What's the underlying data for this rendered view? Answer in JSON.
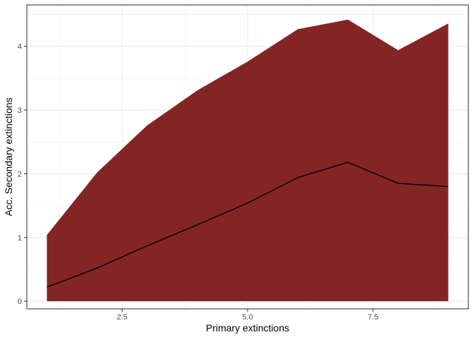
{
  "chart_data": {
    "type": "area",
    "title": "",
    "xlabel": "Primary extinctions",
    "ylabel": "Acc. Secondary extinctions",
    "xlim": [
      0.6,
      9.4
    ],
    "ylim": [
      -0.12,
      4.65
    ],
    "x_ticks": [
      2.5,
      5.0,
      7.5
    ],
    "x_tick_labels": [
      "2.5",
      "5.0",
      "7.5"
    ],
    "y_ticks": [
      0,
      1,
      2,
      3,
      4
    ],
    "y_tick_labels": [
      "0",
      "1",
      "2",
      "3",
      "4"
    ],
    "grid": true,
    "x": [
      1,
      2,
      3,
      4,
      5,
      6,
      7,
      8,
      9
    ],
    "series": [
      {
        "type": "ribbon",
        "lower": [
          0,
          0,
          0,
          0,
          0,
          0,
          0,
          0,
          0
        ],
        "upper": [
          1.04,
          2.02,
          2.76,
          3.31,
          3.76,
          4.27,
          4.42,
          3.94,
          4.36
        ]
      },
      {
        "type": "line",
        "values": [
          0.22,
          0.52,
          0.87,
          1.2,
          1.54,
          1.94,
          2.18,
          1.85,
          1.8
        ]
      }
    ],
    "colors": {
      "ribbon": "#832525",
      "line": "#000000"
    }
  }
}
